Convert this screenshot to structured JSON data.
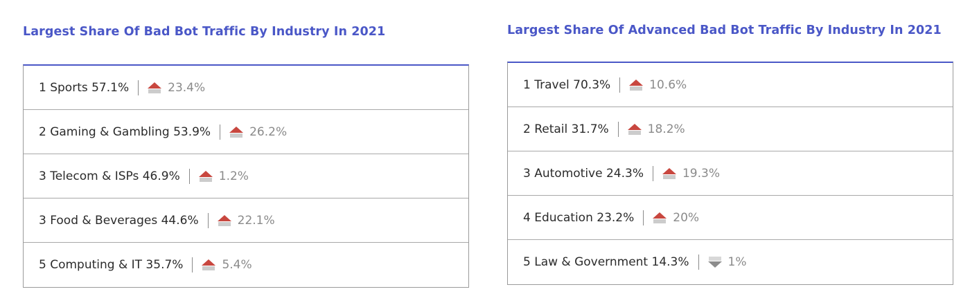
{
  "colors": {
    "title": "#4a57c7",
    "up_arrow": "#c8473f",
    "down_arrow": "#8c8c8c",
    "change_text": "#8a8a8a"
  },
  "left_panel": {
    "title": "Largest Share Of Bad Bot Traffic By Industry In 2021",
    "rows": [
      {
        "label": "1 Sports 57.1%",
        "direction": "up",
        "icon": "up-arrow-icon",
        "change": "23.4%"
      },
      {
        "label": "2 Gaming & Gambling 53.9%",
        "direction": "up",
        "icon": "up-arrow-icon",
        "change": "26.2%"
      },
      {
        "label": "3 Telecom & ISPs 46.9%",
        "direction": "up",
        "icon": "up-arrow-icon",
        "change": "1.2%"
      },
      {
        "label": "3 Food & Beverages 44.6%",
        "direction": "up",
        "icon": "up-arrow-icon",
        "change": "22.1%"
      },
      {
        "label": "5 Computing & IT 35.7%",
        "direction": "up",
        "icon": "up-arrow-icon",
        "change": "5.4%"
      }
    ]
  },
  "right_panel": {
    "title": "Largest Share Of Advanced Bad Bot Traffic By Industry In 2021",
    "rows": [
      {
        "label": "1 Travel 70.3%",
        "direction": "up",
        "icon": "up-arrow-icon",
        "change": "10.6%"
      },
      {
        "label": "2 Retail 31.7%",
        "direction": "up",
        "icon": "up-arrow-icon",
        "change": "18.2%"
      },
      {
        "label": "3 Automotive 24.3%",
        "direction": "up",
        "icon": "up-arrow-icon",
        "change": "19.3%"
      },
      {
        "label": "4 Education 23.2%",
        "direction": "up",
        "icon": "up-arrow-icon",
        "change": "20%"
      },
      {
        "label": "5 Law & Government 14.3%",
        "direction": "down",
        "icon": "down-arrow-icon",
        "change": "1%"
      }
    ]
  }
}
